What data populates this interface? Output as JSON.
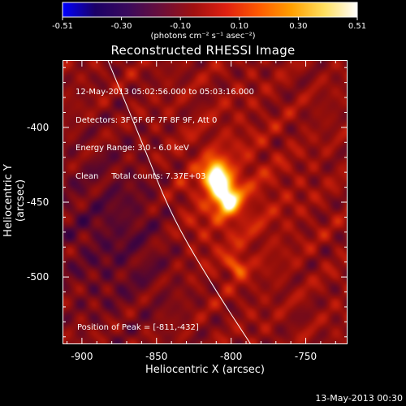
{
  "colorbar": {
    "ticks": [
      "-0.51",
      "-0.30",
      "-0.10",
      "0.10",
      "0.30",
      "0.51"
    ],
    "units": "(photons cm⁻² s⁻¹ asec⁻²)",
    "colors": [
      "#0000ff",
      "#1b0066",
      "#3a0a5c",
      "#6a0f3a",
      "#a01010",
      "#e02010",
      "#ff5a00",
      "#ffa000",
      "#ffe060",
      "#ffffff"
    ]
  },
  "title": "Reconstructed RHESSI Image",
  "info": {
    "line1": "12-May-2013 05:02:56.000 to 05:03:16.000",
    "line2": "Detectors: 3F 5F 6F 7F 8F 9F, Att 0",
    "line3": "Energy Range: 3.0 - 6.0 keV",
    "line4": "Clean     Total counts: 7.37E+03"
  },
  "peak_label": "Position of Peak = [-811,-432]",
  "axes": {
    "xlabel": "Heliocentric X (arcsec)",
    "ylabel": "Heliocentric Y (arcsec)",
    "xticks": [
      "-900",
      "-850",
      "-800",
      "-750"
    ],
    "yticks": [
      "-400",
      "-450",
      "-500"
    ],
    "xlim": [
      -913,
      -722
    ],
    "ylim": [
      -545,
      -355
    ]
  },
  "sources": [
    {
      "x": -811,
      "y": -432,
      "peak": 1.0
    },
    {
      "x": -803,
      "y": -447,
      "peak": 0.85
    },
    {
      "x": -797,
      "y": -492,
      "peak": 0.55
    }
  ],
  "limb_curve": [
    [
      -883,
      -355
    ],
    [
      -860,
      -410
    ],
    [
      -840,
      -460
    ],
    [
      -810,
      -510
    ],
    [
      -787,
      -545
    ]
  ],
  "timestamp": "13-May-2013 00:30"
}
